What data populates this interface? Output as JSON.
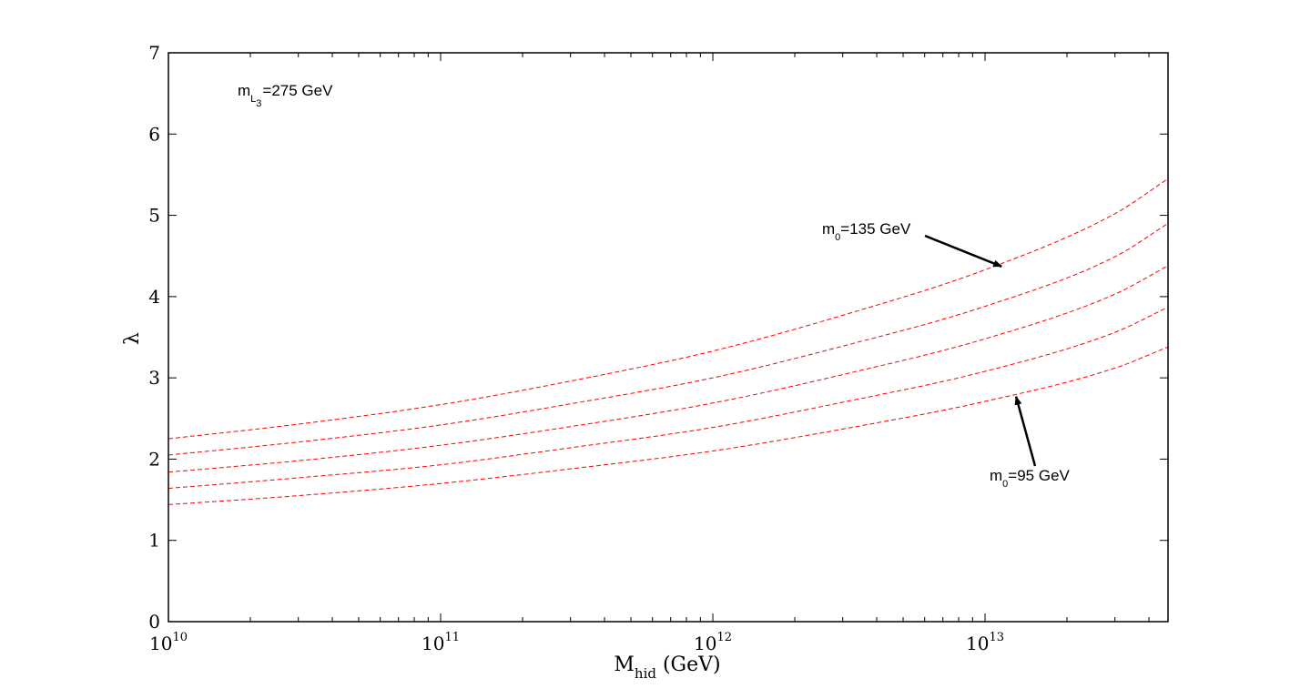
{
  "chart_data": {
    "type": "line",
    "title": "",
    "xlabel": {
      "main": "M",
      "sub": "hid",
      "rest": " (GeV)"
    },
    "ylabel": "λ",
    "x_scale": "log",
    "xlim": [
      10000000000.0,
      47000000000000.0
    ],
    "ylim": [
      0,
      7
    ],
    "x_ticks": [
      {
        "value": 10000000000.0,
        "base": "10",
        "exp": "10"
      },
      {
        "value": 100000000000.0,
        "base": "10",
        "exp": "11"
      },
      {
        "value": 1000000000000.0,
        "base": "10",
        "exp": "12"
      },
      {
        "value": 10000000000000.0,
        "base": "10",
        "exp": "13"
      }
    ],
    "y_ticks": [
      "0",
      "1",
      "2",
      "3",
      "4",
      "5",
      "6",
      "7"
    ],
    "grid": false,
    "line_style": {
      "color": "#ff0000",
      "dash": "dashed"
    },
    "x": [
      10000000000.0,
      30000000000.0,
      100000000000.0,
      300000000000.0,
      1000000000000.0,
      3000000000000.0,
      10000000000000.0,
      30000000000000.0,
      47000000000000.0
    ],
    "series": [
      {
        "values": [
          2.25,
          2.43,
          2.67,
          2.96,
          3.33,
          3.77,
          4.33,
          5.02,
          5.45
        ]
      },
      {
        "values": [
          2.05,
          2.21,
          2.42,
          2.68,
          3.0,
          3.39,
          3.88,
          4.49,
          4.9
        ]
      },
      {
        "values": [
          1.84,
          1.98,
          2.17,
          2.4,
          2.69,
          3.04,
          3.48,
          4.03,
          4.38
        ]
      },
      {
        "values": [
          1.64,
          1.77,
          1.93,
          2.14,
          2.39,
          2.7,
          3.08,
          3.56,
          3.87
        ]
      },
      {
        "values": [
          1.44,
          1.55,
          1.7,
          1.88,
          2.1,
          2.37,
          2.71,
          3.12,
          3.38
        ]
      }
    ],
    "annotations": [
      {
        "id": "mL3",
        "main": "m",
        "sub": "L",
        "subsub": "3",
        "rest": "=275 GeV"
      },
      {
        "id": "m0-135",
        "main": "m",
        "sub": "0",
        "rest": "=135 GeV",
        "arrow_to": {
          "x": 11500000000000.0,
          "y": 4.37
        }
      },
      {
        "id": "m0-95",
        "main": "m",
        "sub": "0",
        "rest": "=95 GeV",
        "arrow_to": {
          "x": 13000000000000.0,
          "y": 2.77
        }
      }
    ]
  }
}
